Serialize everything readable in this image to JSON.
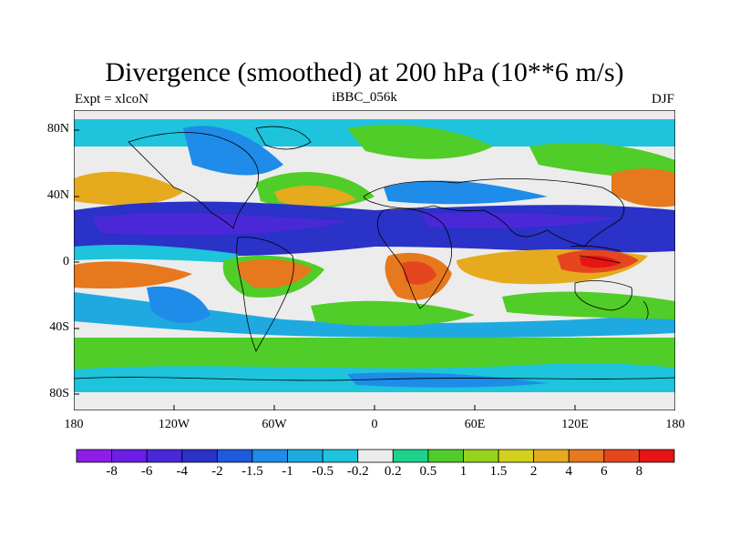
{
  "title": "Divergence (smoothed) at 200 hPa (10**6 m/s)",
  "subtitle_left": "Expt = xlcoN",
  "subtitle_center": "iBBC_056k",
  "subtitle_right": "DJF",
  "lat_labels": [
    "80N",
    "40N",
    "0",
    "40S",
    "80S"
  ],
  "lon_labels": [
    "180",
    "120W",
    "60W",
    "0",
    "60E",
    "120E",
    "180"
  ],
  "colorbar": {
    "colors": [
      "#8c1ee6",
      "#6a1ee6",
      "#4a28d8",
      "#2a32c8",
      "#1e5adc",
      "#1e8ce8",
      "#1eaae0",
      "#1ec3dc",
      "#ececec",
      "#1ed28c",
      "#50cd28",
      "#96d21e",
      "#d2d21e",
      "#e6aa1e",
      "#e6781e",
      "#e6461e",
      "#e61414"
    ],
    "labels": [
      "-8",
      "-6",
      "-4",
      "-2",
      "-1.5",
      "-1",
      "-0.5",
      "-0.2",
      "0.2",
      "0.5",
      "1",
      "1.5",
      "2",
      "4",
      "6",
      "8"
    ]
  }
}
